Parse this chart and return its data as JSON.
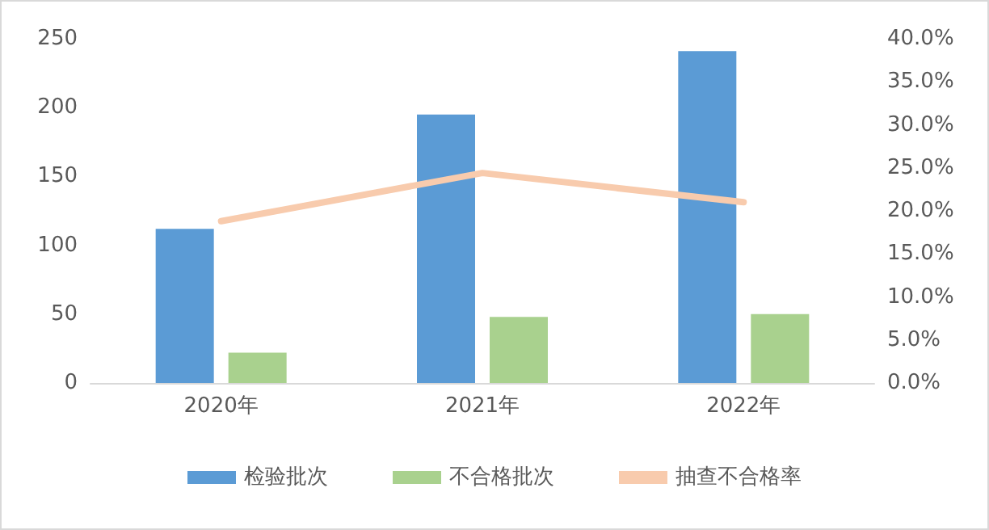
{
  "chart_data": {
    "type": "bar",
    "categories": [
      "2020年",
      "2021年",
      "2022年"
    ],
    "series": [
      {
        "name": "检验批次",
        "color": "#5b9bd5",
        "values": [
          112,
          195,
          241
        ]
      },
      {
        "name": "不合格批次",
        "color": "#a9d18e",
        "values": [
          22,
          48,
          50
        ]
      },
      {
        "name": "抽查不合格率",
        "type": "line",
        "axis": "y2",
        "color": "#f8cbad",
        "values": [
          18.8,
          24.4,
          21.0
        ]
      }
    ],
    "ylim": [
      0,
      250
    ],
    "yticks": [
      0,
      50,
      100,
      150,
      200,
      250
    ],
    "y2lim": [
      0,
      40
    ],
    "y2ticks": [
      {
        "value": 0,
        "label": "0.0%"
      },
      {
        "value": 5,
        "label": "5.0%"
      },
      {
        "value": 10,
        "label": "10.0%"
      },
      {
        "value": 15,
        "label": "15.0%"
      },
      {
        "value": 20,
        "label": "20.0%"
      },
      {
        "value": 25,
        "label": "25.0%"
      },
      {
        "value": 30,
        "label": "30.0%"
      },
      {
        "value": 35,
        "label": "35.0%"
      },
      {
        "value": 40,
        "label": "40.0%"
      }
    ],
    "legend": "bottom",
    "marker": "none",
    "grid": false
  }
}
